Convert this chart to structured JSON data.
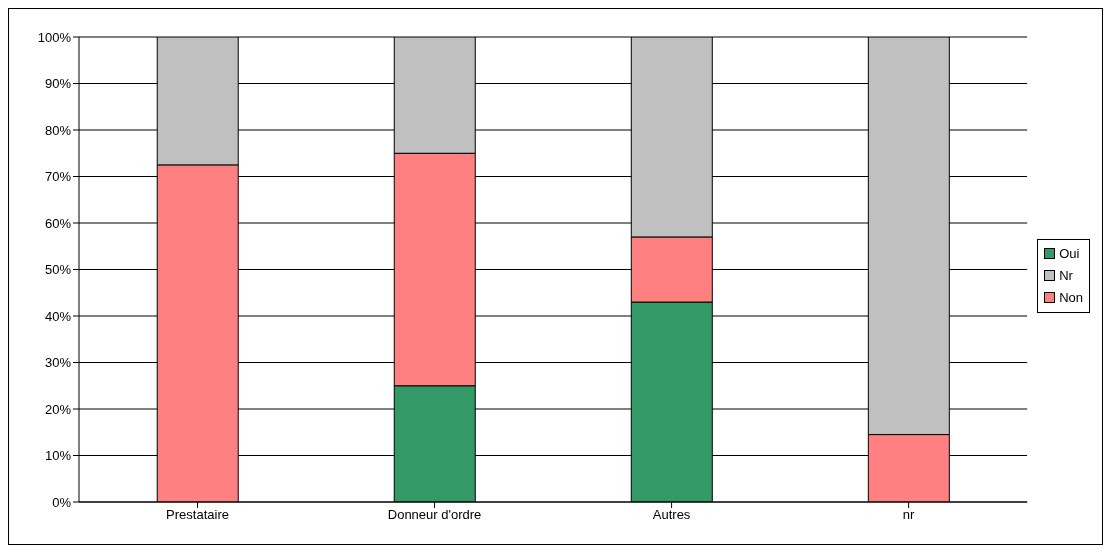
{
  "chart_data": {
    "type": "bar",
    "stacked": true,
    "categories": [
      "Prestataire",
      "Donneur d'ordre",
      "Autres",
      "nr"
    ],
    "series": [
      {
        "name": "Oui",
        "color": "#339966",
        "values": [
          0,
          25,
          43,
          0
        ]
      },
      {
        "name": "Non",
        "color": "#ff8080",
        "values": [
          72.5,
          50,
          14,
          14.5
        ]
      },
      {
        "name": "Nr",
        "color": "#c0c0c0",
        "values": [
          27.5,
          25,
          43,
          85.5
        ]
      }
    ],
    "ylim": [
      0,
      100
    ],
    "yticks": [
      {
        "value": 0,
        "label": "0%"
      },
      {
        "value": 10,
        "label": "10%"
      },
      {
        "value": 20,
        "label": "20%"
      },
      {
        "value": 30,
        "label": "30%"
      },
      {
        "value": 40,
        "label": "40%"
      },
      {
        "value": 50,
        "label": "50%"
      },
      {
        "value": 60,
        "label": "60%"
      },
      {
        "value": 70,
        "label": "70%"
      },
      {
        "value": 80,
        "label": "80%"
      },
      {
        "value": 90,
        "label": "90%"
      },
      {
        "value": 100,
        "label": "100%"
      }
    ],
    "grid": "y",
    "legend": "right"
  }
}
